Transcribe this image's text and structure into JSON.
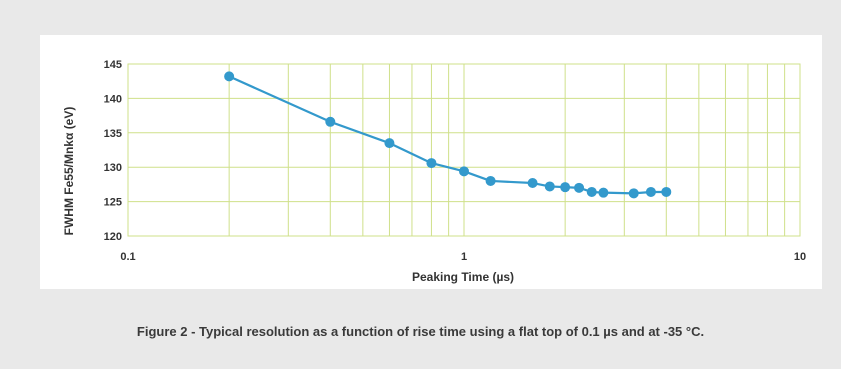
{
  "caption": "Figure 2 - Typical resolution as a function of rise time using a flat top of 0.1 µs and at -35 °C.",
  "colors": {
    "background": "#e9e9e9",
    "card": "#ffffff",
    "grid": "#cfe08a",
    "series": "#3399cc",
    "text": "#333333"
  },
  "chart_data": {
    "type": "line",
    "xlabel": "Peaking Time (µs)",
    "ylabel": "FWHM Fe55/Mnkα (eV)",
    "x_scale": "log",
    "xlim": [
      0.1,
      10
    ],
    "ylim": [
      120,
      145
    ],
    "x_ticks": [
      0.1,
      1,
      10
    ],
    "x_tick_labels": [
      "0.1",
      "1",
      "10"
    ],
    "y_ticks": [
      120,
      125,
      130,
      135,
      140,
      145
    ],
    "y_tick_labels": [
      "120",
      "125",
      "130",
      "135",
      "140",
      "145"
    ],
    "grid": true,
    "series": [
      {
        "marker": "circle",
        "x": [
          0.2,
          0.4,
          0.6,
          0.8,
          1.0,
          1.2,
          1.6,
          1.8,
          2.0,
          2.2,
          2.4,
          2.6,
          3.2,
          3.6,
          4.0
        ],
        "y": [
          143.2,
          136.6,
          133.5,
          130.6,
          129.4,
          128.0,
          127.7,
          127.2,
          127.1,
          127.0,
          126.4,
          126.3,
          126.2,
          126.4,
          126.4
        ]
      }
    ]
  }
}
